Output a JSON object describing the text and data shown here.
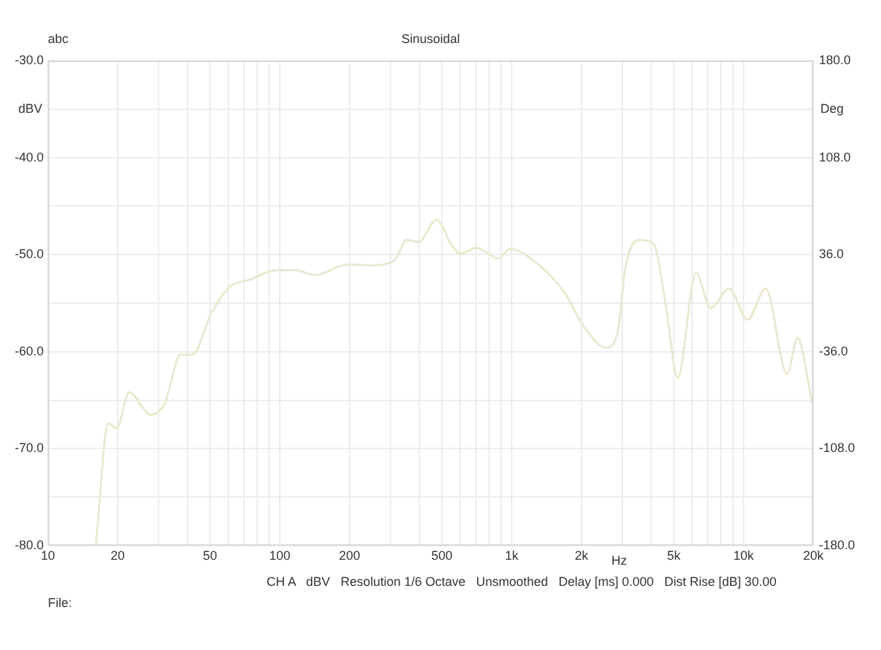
{
  "chart_data": {
    "type": "line",
    "title": "Sinusoidal",
    "xlabel": "Hz",
    "ylabel": "dBV",
    "y2label": "Deg",
    "annotations": [
      "abc",
      "CH A   dBV   Resolution 1/6 Octave   Unsmoothed   Delay [ms] 0.000   Dist Rise [dB] 30.00",
      "File:"
    ],
    "log": "x",
    "grid": true,
    "legend": false,
    "marker": "none",
    "line_style": "solid",
    "xlim": [
      10,
      20000
    ],
    "xticks": [
      10,
      20,
      {
        "value": 30,
        "label": null
      },
      {
        "value": 40,
        "label": null
      },
      50,
      {
        "value": 60,
        "label": null
      },
      {
        "value": 70,
        "label": null
      },
      {
        "value": 80,
        "label": null
      },
      {
        "value": 90,
        "label": null
      },
      100,
      200,
      {
        "value": 300,
        "label": null
      },
      {
        "value": 400,
        "label": null
      },
      500,
      {
        "value": 600,
        "label": null
      },
      {
        "value": 700,
        "label": null
      },
      {
        "value": 800,
        "label": null
      },
      {
        "value": 900,
        "label": null
      },
      {
        "value": 1000,
        "label": "1k"
      },
      {
        "value": 2000,
        "label": "2k"
      },
      {
        "value": 3000,
        "label": null
      },
      {
        "value": 4000,
        "label": null
      },
      {
        "value": 5000,
        "label": "5k"
      },
      {
        "value": 6000,
        "label": null
      },
      {
        "value": 7000,
        "label": null
      },
      {
        "value": 8000,
        "label": null
      },
      {
        "value": 9000,
        "label": null
      },
      {
        "value": 10000,
        "label": "10k"
      },
      {
        "value": 20000,
        "label": "20k"
      }
    ],
    "ylim": [
      -80,
      -30
    ],
    "yticks": [
      {
        "value": -80,
        "label": "-80.0"
      },
      {
        "value": -75,
        "label": null
      },
      {
        "value": -70,
        "label": "-70.0"
      },
      {
        "value": -65,
        "label": null
      },
      {
        "value": -60,
        "label": "-60.0"
      },
      {
        "value": -55,
        "label": null
      },
      {
        "value": -50,
        "label": "-50.0"
      },
      {
        "value": -45,
        "label": null
      },
      {
        "value": -40,
        "label": "-40.0"
      },
      {
        "value": -35,
        "label": null
      },
      {
        "value": -30,
        "label": "-30.0"
      }
    ],
    "y2lim": [
      -180,
      180
    ],
    "y2ticks": [
      {
        "value": -180,
        "label": "-180.0"
      },
      {
        "value": -108,
        "label": "-108.0"
      },
      {
        "value": -36,
        "label": "-36.0"
      },
      {
        "value": 36,
        "label": "36.0"
      },
      {
        "value": 108,
        "label": "108.0"
      },
      {
        "value": 180,
        "label": "180.0"
      }
    ],
    "series": [
      {
        "color": "#ebe8cf",
        "x": [
          16.1,
          18.2,
          19.8,
          22.4,
          27.7,
          31.8,
          37.4,
          42,
          50.7,
          61,
          73.7,
          97,
          117,
          142,
          197,
          247,
          312,
          352,
          396,
          475,
          548,
          600,
          705,
          875,
          982,
          1210,
          1680,
          2020,
          2560,
          2880,
          3090,
          3560,
          4100,
          4620,
          5200,
          6240,
          7220,
          8670,
          10400,
          12470,
          15400,
          17100,
          19800
        ],
        "values": [
          -80,
          -67.4,
          -67.9,
          -64.2,
          -66.5,
          -65.4,
          -60.3,
          -60.3,
          -56,
          -53.3,
          -52.6,
          -51.6,
          -51.6,
          -52.1,
          -51,
          -51.1,
          -50.6,
          -48.5,
          -48.7,
          -46.4,
          -48.9,
          -49.9,
          -49.3,
          -50.4,
          -49.4,
          -50.4,
          -53.8,
          -57.2,
          -59.6,
          -57.7,
          -51.4,
          -48.5,
          -48.9,
          -55.2,
          -62.7,
          -51.9,
          -55.5,
          -53.5,
          -56.7,
          -53.5,
          -62.3,
          -58.6,
          -65.4
        ]
      }
    ]
  }
}
